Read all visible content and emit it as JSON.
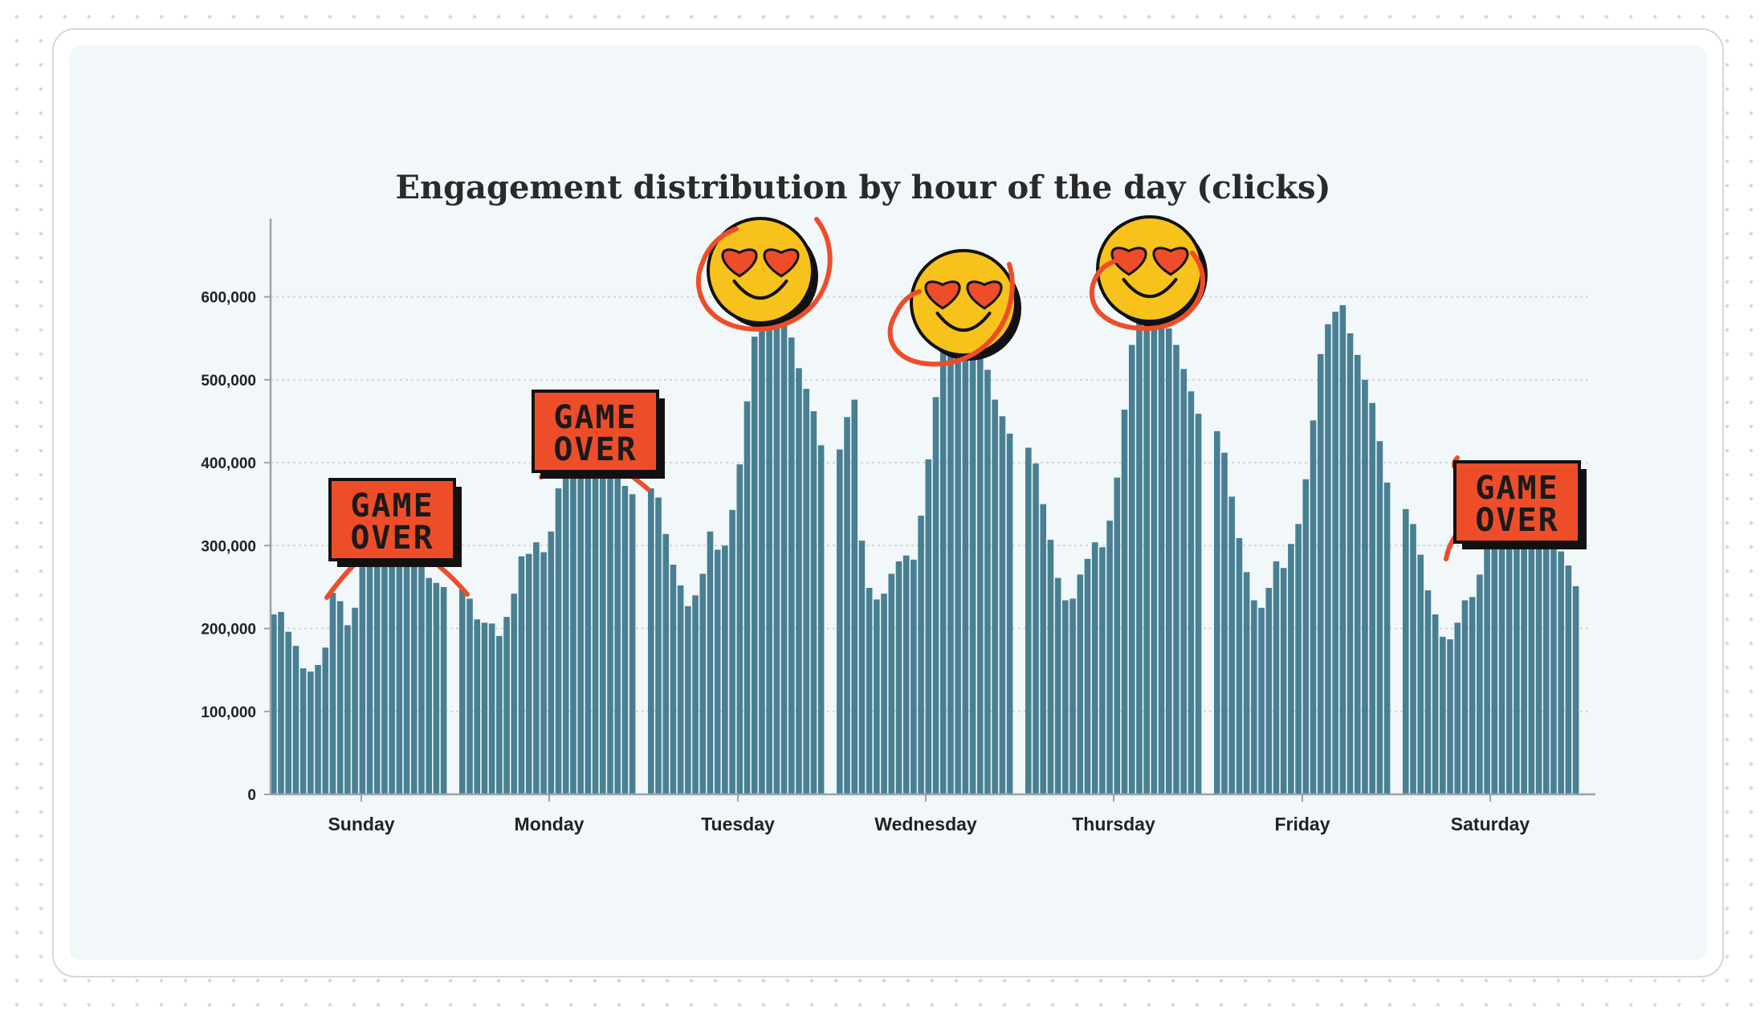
{
  "colors": {
    "bar": "#487f92",
    "bar_edge": "#f2f7fa",
    "sticker_red": "#ee4d2a",
    "smiley_yellow": "#f7c21b",
    "grid": "#cfd6da",
    "axis": "#9aa3a8"
  },
  "chart_data": {
    "type": "bar",
    "title": "Engagement distribution by hour of the day (clicks)",
    "xlabel": "",
    "ylabel": "",
    "ylim": [
      0,
      680000
    ],
    "yticks": [
      0,
      100000,
      200000,
      300000,
      400000,
      500000,
      600000
    ],
    "ytick_labels": [
      "0",
      "100,000",
      "200,000",
      "300,000",
      "400,000",
      "500,000",
      "600,000"
    ],
    "grid": "horizontal, dotted",
    "legend": "none",
    "categories": [
      "Sunday",
      "Monday",
      "Tuesday",
      "Wednesday",
      "Thursday",
      "Friday",
      "Saturday"
    ],
    "bars_per_category": 24,
    "series": [
      {
        "values": [
          [
            217000,
            220000,
            196000,
            179000,
            152000,
            148000,
            156000,
            177000,
            243000,
            233000,
            204000,
            225000,
            274000,
            296000,
            312000,
            318000,
            320000,
            314000,
            303000,
            293000,
            276000,
            261000,
            255000,
            250000
          ],
          [
            248000,
            236000,
            211000,
            207000,
            206000,
            191000,
            214000,
            242000,
            287000,
            290000,
            304000,
            292000,
            317000,
            369000,
            390000,
            402000,
            410000,
            417000,
            412000,
            404000,
            395000,
            382000,
            372000,
            362000
          ],
          [
            369000,
            358000,
            314000,
            277000,
            252000,
            227000,
            240000,
            266000,
            317000,
            295000,
            300000,
            343000,
            398000,
            474000,
            552000,
            590000,
            603000,
            590000,
            573000,
            551000,
            514000,
            489000,
            462000,
            421000
          ],
          [
            416000,
            455000,
            476000,
            306000,
            249000,
            235000,
            242000,
            266000,
            281000,
            288000,
            283000,
            336000,
            404000,
            479000,
            550000,
            581000,
            590000,
            583000,
            571000,
            548000,
            512000,
            476000,
            456000,
            435000
          ],
          [
            418000,
            399000,
            350000,
            307000,
            261000,
            234000,
            236000,
            265000,
            284000,
            304000,
            298000,
            330000,
            382000,
            464000,
            542000,
            590000,
            603000,
            600000,
            588000,
            562000,
            542000,
            513000,
            486000,
            459000
          ],
          [
            438000,
            412000,
            359000,
            309000,
            268000,
            234000,
            225000,
            249000,
            281000,
            273000,
            302000,
            326000,
            380000,
            451000,
            531000,
            567000,
            582000,
            590000,
            556000,
            530000,
            500000,
            472000,
            426000,
            376000
          ],
          [
            344000,
            326000,
            289000,
            246000,
            217000,
            190000,
            187000,
            207000,
            234000,
            238000,
            265000,
            319000,
            335000,
            351000,
            362000,
            366000,
            361000,
            355000,
            346000,
            325000,
            311000,
            293000,
            276000,
            251000
          ]
        ]
      }
    ],
    "stickers": {
      "game_over_text": [
        "GAME",
        "OVER"
      ],
      "game_over_over": [
        "Sunday",
        "Monday",
        "Saturday"
      ],
      "heart_eyes_over": [
        "Tuesday",
        "Wednesday",
        "Thursday"
      ]
    }
  }
}
